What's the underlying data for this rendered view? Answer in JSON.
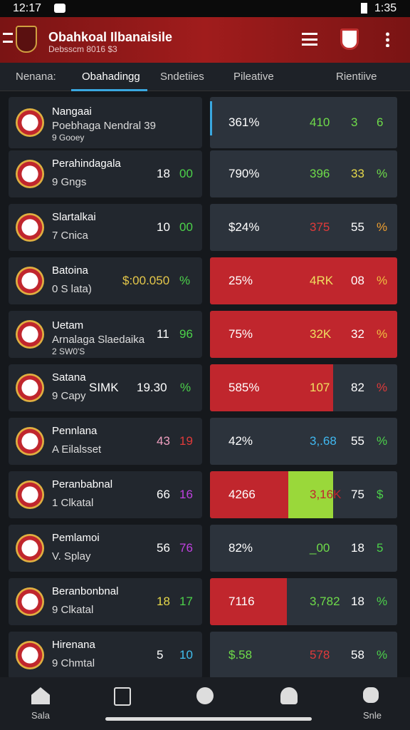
{
  "status": {
    "time": "12:17",
    "right": "1:35"
  },
  "header": {
    "title": "Obahkoal Ilbanaisile",
    "subtitle": "Debsscm 8016 $3"
  },
  "tabs": [
    "Nenana:",
    "Obahadingg",
    "Sndetiies",
    "Pileative",
    "Rientiive"
  ],
  "rows": [
    {
      "name": "Nangaai",
      "lines": [
        "Poebhaga Nendral 39",
        "9 Gooey"
      ],
      "stats": [],
      "stat_colors": [],
      "right": [
        "361%",
        "410",
        "3",
        "6"
      ],
      "right_colors": [
        "#fff",
        "#6fdc4a",
        "#6fdc4a",
        "#6fdc4a"
      ],
      "panel": "#2c333c"
    },
    {
      "name": "Perahindagala",
      "lines": [
        "9 Gngs"
      ],
      "stats": [
        "18",
        "00"
      ],
      "stat_colors": [
        "#fff",
        "#4cd24a"
      ],
      "right": [
        "790%",
        "396",
        "33",
        "%"
      ],
      "right_colors": [
        "#fff",
        "#6fdc4a",
        "#e6d84a",
        "#6fdc4a"
      ],
      "panel": "#2c333c"
    },
    {
      "name": "Slartalkai",
      "lines": [
        "7 Cnica"
      ],
      "stats": [
        "10",
        "00"
      ],
      "stat_colors": [
        "#fff",
        "#4cd24a"
      ],
      "right": [
        "$24%",
        "375",
        "55",
        "%"
      ],
      "right_colors": [
        "#fff",
        "#e03a3a",
        "#fff",
        "#f0a030"
      ],
      "panel": "#2c333c"
    },
    {
      "name": "Batoina",
      "lines": [
        "0 S lata)"
      ],
      "stats": [
        "$:00.050",
        "%"
      ],
      "stat_colors": [
        "#e6c84a",
        "#4cd24a"
      ],
      "right": [
        "25%",
        "4RK",
        "08",
        "%"
      ],
      "right_colors": [
        "#fff",
        "#f0e060",
        "#fff",
        "#f0c040"
      ],
      "panel": "#c0262d"
    },
    {
      "name": "Uetam",
      "lines": [
        "Arnalaga Slaedaika",
        "2 SW0'S"
      ],
      "stats": [
        "11",
        "96"
      ],
      "stat_colors": [
        "#fff",
        "#4cd24a"
      ],
      "right": [
        "75%",
        "32K",
        "32",
        "%"
      ],
      "right_colors": [
        "#fff",
        "#f0e060",
        "#fff",
        "#f0c040"
      ],
      "panel": "#c0262d"
    },
    {
      "name": "Satana",
      "lines": [
        "9 Capy"
      ],
      "stats": [
        "SIMK",
        "19.30",
        "%"
      ],
      "stat_colors": [
        "#fff",
        "#fff",
        "#4cd24a"
      ],
      "right": [
        "585%",
        "107",
        "82",
        "%"
      ],
      "right_colors": [
        "#fff",
        "#f0e060",
        "#fff",
        "#e03a3a"
      ],
      "panel": "linear-gradient(90deg,#c0262d 0 173px,#2c333c 173px)"
    },
    {
      "name": "Pennlana",
      "lines": [
        "A Eilalsset"
      ],
      "stats": [
        "43",
        "19"
      ],
      "stat_colors": [
        "#f0a0c0",
        "#e03a3a"
      ],
      "right": [
        "42%",
        "3,.68",
        "55",
        "%"
      ],
      "right_colors": [
        "#fff",
        "#40b8f0",
        "#fff",
        "#4cd24a"
      ],
      "panel": "#2c333c"
    },
    {
      "name": "Peranbabnal",
      "lines": [
        "1 Clkatal"
      ],
      "stats": [
        "66",
        "16"
      ],
      "stat_colors": [
        "#fff",
        "#c040e0"
      ],
      "right": [
        "4266",
        "3,16K",
        "75",
        "$"
      ],
      "right_colors": [
        "#fff",
        "#c0262d",
        "#fff",
        "#4cd24a"
      ],
      "panel": "linear-gradient(90deg,#c0262d 0 110px,#9ad83a 110px 173px,#2c333c 173px)"
    },
    {
      "name": "Pemlamoi",
      "lines": [
        "V. Splay"
      ],
      "stats": [
        "56",
        "76"
      ],
      "stat_colors": [
        "#fff",
        "#c040e0"
      ],
      "right": [
        "82%",
        "_00",
        "18",
        "5"
      ],
      "right_colors": [
        "#fff",
        "#6fdc4a",
        "#fff",
        "#4cd24a"
      ],
      "panel": "#2c333c"
    },
    {
      "name": "Beranbonbnal",
      "lines": [
        "9 Clkatal"
      ],
      "stats": [
        "18",
        "17"
      ],
      "stat_colors": [
        "#e6d84a",
        "#4cd24a"
      ],
      "right": [
        "7116",
        "3,782",
        "18",
        "%"
      ],
      "right_colors": [
        "#fff",
        "#6fdc4a",
        "#fff",
        "#4cd24a"
      ],
      "panel": "linear-gradient(90deg,#c0262d 0 108px,#2c333c 108px)"
    },
    {
      "name": "Hirenana",
      "lines": [
        "9 Chmtal"
      ],
      "stats": [
        "5",
        "10"
      ],
      "stat_colors": [
        "#fff",
        "#40c0f0"
      ],
      "right": [
        "$.58",
        "578",
        "58",
        "%"
      ],
      "right_colors": [
        "#6fdc4a",
        "#e03a3a",
        "#fff",
        "#4cd24a"
      ],
      "panel": "#2c333c"
    }
  ],
  "nav": [
    "Sala",
    "Snle"
  ]
}
